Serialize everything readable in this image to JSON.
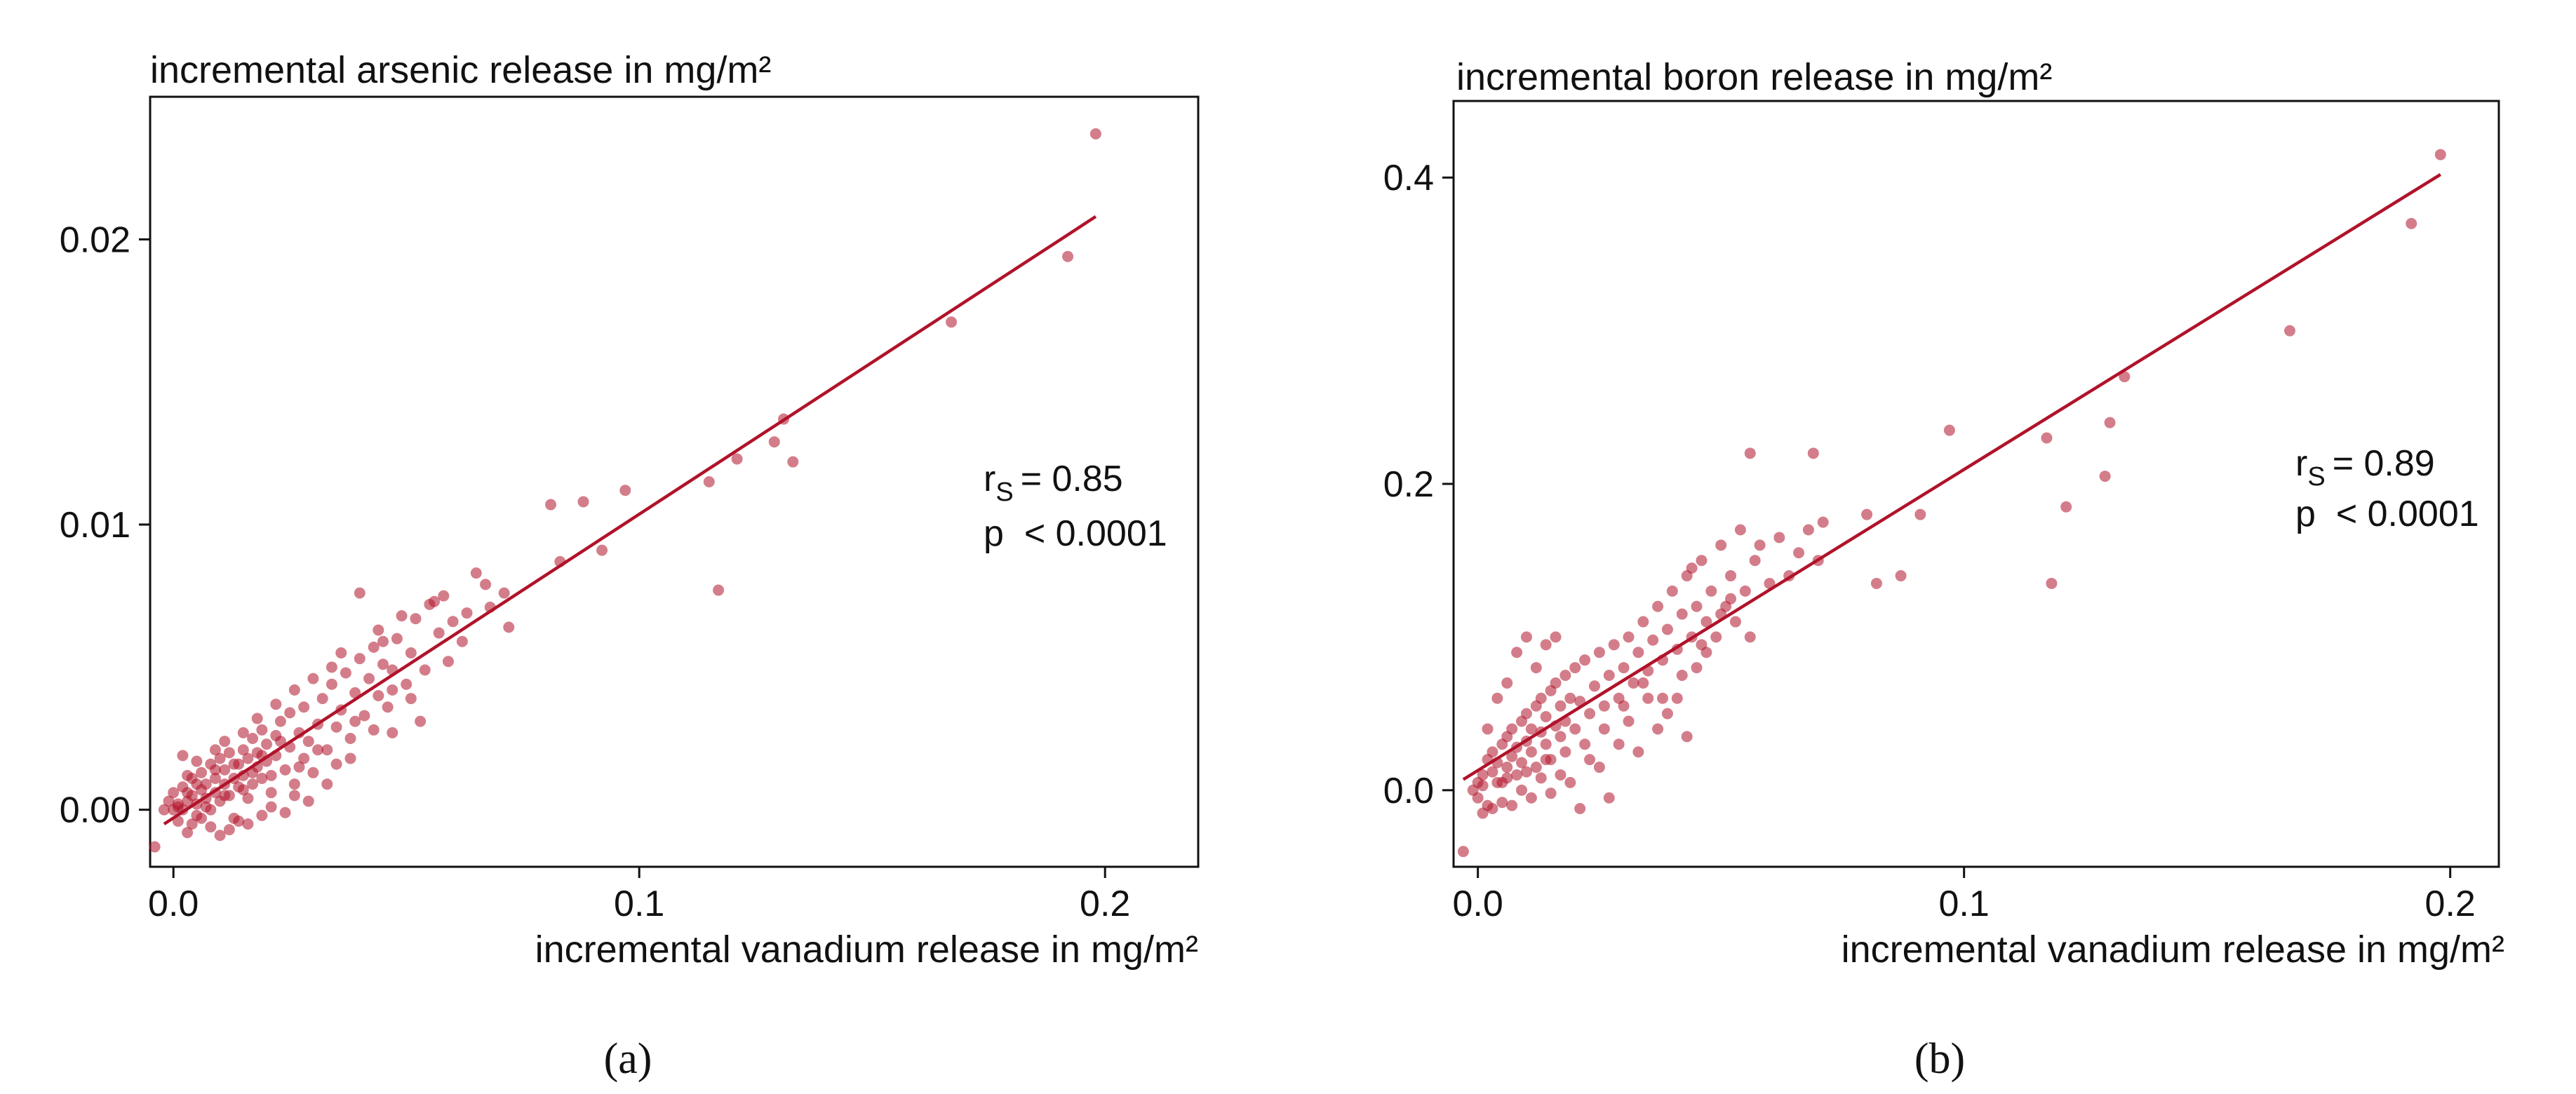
{
  "colors": {
    "accent": "#b0132a",
    "axis": "#111111",
    "background": "#ffffff"
  },
  "chart_data": [
    {
      "type": "scatter",
      "title": "incremental arsenic release in mg/m²",
      "xlabel": "incremental vanadium release in mg/m²",
      "ylabel": "",
      "xlim": [
        -0.005,
        0.22
      ],
      "ylim": [
        -0.002,
        0.025
      ],
      "xticks": [
        0.0,
        0.1,
        0.2
      ],
      "xtick_labels": [
        "0.0",
        "0.1",
        "0.2"
      ],
      "yticks": [
        0.0,
        0.01,
        0.02
      ],
      "ytick_labels": [
        "0.00",
        "0.01",
        "0.02"
      ],
      "grid": false,
      "annotation": {
        "r_prefix": "r",
        "r_sub": "S",
        "r_value": "= 0.85",
        "p_text": "p  < 0.0001"
      },
      "fit_line": {
        "x": [
          -0.002,
          0.198
        ],
        "y": [
          -0.0005,
          0.0208
        ]
      },
      "caption": "(a)",
      "points": [
        [
          -0.004,
          -0.0013
        ],
        [
          -0.002,
          0.0
        ],
        [
          -0.001,
          0.0003
        ],
        [
          0.0,
          0.0
        ],
        [
          0.0,
          0.0006
        ],
        [
          0.001,
          -0.0004
        ],
        [
          0.001,
          0.0002
        ],
        [
          0.002,
          0.0008
        ],
        [
          0.002,
          0.0
        ],
        [
          0.003,
          0.0003
        ],
        [
          0.003,
          -0.0008
        ],
        [
          0.004,
          0.0005
        ],
        [
          0.004,
          0.0011
        ],
        [
          0.005,
          0.0002
        ],
        [
          0.005,
          -0.0002
        ],
        [
          0.006,
          0.0007
        ],
        [
          0.006,
          0.0013
        ],
        [
          0.007,
          0.0004
        ],
        [
          0.007,
          0.0009
        ],
        [
          0.008,
          0.0
        ],
        [
          0.008,
          0.0016
        ],
        [
          0.009,
          0.0006
        ],
        [
          0.009,
          0.0011
        ],
        [
          0.01,
          0.0003
        ],
        [
          0.01,
          0.0018
        ],
        [
          0.011,
          0.0009
        ],
        [
          0.011,
          0.0014
        ],
        [
          0.012,
          0.0005
        ],
        [
          0.012,
          0.002
        ],
        [
          0.013,
          0.0011
        ],
        [
          0.013,
          -0.0003
        ],
        [
          0.014,
          0.0016
        ],
        [
          0.014,
          0.0008
        ],
        [
          0.015,
          0.0021
        ],
        [
          0.015,
          0.0012
        ],
        [
          0.016,
          0.0004
        ],
        [
          0.016,
          0.0018
        ],
        [
          0.017,
          0.0025
        ],
        [
          0.017,
          0.0009
        ],
        [
          0.018,
          0.0015
        ],
        [
          0.018,
          0.002
        ],
        [
          0.019,
          0.0028
        ],
        [
          0.019,
          0.0011
        ],
        [
          0.02,
          0.0017
        ],
        [
          0.02,
          0.0023
        ],
        [
          0.021,
          0.0006
        ],
        [
          0.022,
          0.0019
        ],
        [
          0.022,
          0.0026
        ],
        [
          0.023,
          0.0031
        ],
        [
          0.024,
          0.0014
        ],
        [
          0.025,
          0.0022
        ],
        [
          0.025,
          0.0034
        ],
        [
          0.026,
          0.0009
        ],
        [
          0.027,
          0.0027
        ],
        [
          0.028,
          0.0018
        ],
        [
          0.028,
          0.0036
        ],
        [
          0.029,
          0.0024
        ],
        [
          0.03,
          0.0013
        ],
        [
          0.031,
          0.003
        ],
        [
          0.032,
          0.0039
        ],
        [
          0.033,
          0.0021
        ],
        [
          0.034,
          0.0044
        ],
        [
          0.035,
          0.0029
        ],
        [
          0.036,
          0.0035
        ],
        [
          0.037,
          0.0048
        ],
        [
          0.038,
          0.0025
        ],
        [
          0.039,
          0.0041
        ],
        [
          0.04,
          0.0053
        ],
        [
          0.041,
          0.0033
        ],
        [
          0.042,
          0.0046
        ],
        [
          0.043,
          0.0057
        ],
        [
          0.044,
          0.004
        ],
        [
          0.045,
          0.0051
        ],
        [
          0.046,
          0.0036
        ],
        [
          0.047,
          0.0049
        ],
        [
          0.048,
          0.006
        ],
        [
          0.05,
          0.0044
        ],
        [
          0.051,
          0.0055
        ],
        [
          0.052,
          0.0067
        ],
        [
          0.054,
          0.0049
        ],
        [
          0.055,
          0.0072
        ],
        [
          0.057,
          0.0062
        ],
        [
          0.058,
          0.0075
        ],
        [
          0.06,
          0.0066
        ],
        [
          0.062,
          0.0059
        ],
        [
          0.065,
          0.0083
        ],
        [
          0.068,
          0.0071
        ],
        [
          0.071,
          0.0076
        ],
        [
          0.072,
          0.0064
        ],
        [
          0.04,
          0.0076
        ],
        [
          0.053,
          0.0031
        ],
        [
          0.047,
          0.0027
        ],
        [
          0.038,
          0.0018
        ],
        [
          0.033,
          0.0009
        ],
        [
          0.029,
          0.0003
        ],
        [
          0.026,
          0.0005
        ],
        [
          0.024,
          -0.0001
        ],
        [
          0.021,
          0.0001
        ],
        [
          0.019,
          -0.0002
        ],
        [
          0.016,
          -0.0005
        ],
        [
          0.014,
          -0.0004
        ],
        [
          0.012,
          -0.0007
        ],
        [
          0.01,
          -0.0009
        ],
        [
          0.008,
          -0.0006
        ],
        [
          0.006,
          -0.0003
        ],
        [
          0.004,
          -0.0005
        ],
        [
          0.003,
          0.0012
        ],
        [
          0.002,
          0.0019
        ],
        [
          0.005,
          0.0017
        ],
        [
          0.009,
          0.0021
        ],
        [
          0.011,
          0.0024
        ],
        [
          0.015,
          0.0027
        ],
        [
          0.018,
          0.0032
        ],
        [
          0.022,
          0.0037
        ],
        [
          0.026,
          0.0042
        ],
        [
          0.03,
          0.0046
        ],
        [
          0.034,
          0.005
        ],
        [
          0.036,
          0.0055
        ],
        [
          0.044,
          0.0063
        ],
        [
          0.049,
          0.0068
        ],
        [
          0.056,
          0.0073
        ],
        [
          0.063,
          0.0069
        ],
        [
          0.067,
          0.0079
        ],
        [
          0.081,
          0.0107
        ],
        [
          0.083,
          0.0087
        ],
        [
          0.088,
          0.0108
        ],
        [
          0.092,
          0.0091
        ],
        [
          0.097,
          0.0112
        ],
        [
          0.115,
          0.0115
        ],
        [
          0.117,
          0.0077
        ],
        [
          0.121,
          0.0123
        ],
        [
          0.129,
          0.0129
        ],
        [
          0.131,
          0.0137
        ],
        [
          0.133,
          0.0122
        ],
        [
          0.167,
          0.0171
        ],
        [
          0.192,
          0.0194
        ],
        [
          0.198,
          0.0237
        ],
        [
          0.001,
          0.0001
        ],
        [
          0.003,
          0.0006
        ],
        [
          0.005,
          0.0009
        ],
        [
          0.007,
          0.0001
        ],
        [
          0.009,
          0.0014
        ],
        [
          0.011,
          0.0005
        ],
        [
          0.013,
          0.0016
        ],
        [
          0.015,
          0.0007
        ],
        [
          0.017,
          0.0013
        ],
        [
          0.019,
          0.0019
        ],
        [
          0.021,
          0.0012
        ],
        [
          0.023,
          0.0024
        ],
        [
          0.027,
          0.0015
        ],
        [
          0.031,
          0.0021
        ],
        [
          0.035,
          0.0016
        ],
        [
          0.039,
          0.0031
        ],
        [
          0.043,
          0.0028
        ],
        [
          0.047,
          0.0042
        ],
        [
          0.051,
          0.0039
        ],
        [
          0.059,
          0.0052
        ],
        [
          0.045,
          0.0059
        ]
      ]
    },
    {
      "type": "scatter",
      "title": "incremental boron release in mg/m²",
      "xlabel": "incremental vanadium release in mg/m²",
      "ylabel": "",
      "xlim": [
        -0.005,
        0.21
      ],
      "ylim": [
        -0.05,
        0.45
      ],
      "xticks": [
        0.0,
        0.1,
        0.2
      ],
      "xtick_labels": [
        "0.0",
        "0.1",
        "0.2"
      ],
      "yticks": [
        0.0,
        0.2,
        0.4
      ],
      "ytick_labels": [
        "0.0",
        "0.2",
        "0.4"
      ],
      "grid": false,
      "annotation": {
        "r_prefix": "r",
        "r_sub": "S",
        "r_value": "= 0.89",
        "p_text": "p  < 0.0001"
      },
      "fit_line": {
        "x": [
          -0.003,
          0.198
        ],
        "y": [
          0.007,
          0.402
        ]
      },
      "caption": "(b)",
      "points": [
        [
          -0.003,
          -0.04
        ],
        [
          -0.001,
          0.0
        ],
        [
          0.0,
          0.005
        ],
        [
          0.0,
          -0.005
        ],
        [
          0.001,
          0.01
        ],
        [
          0.001,
          0.003
        ],
        [
          0.002,
          0.02
        ],
        [
          0.002,
          -0.01
        ],
        [
          0.003,
          0.012
        ],
        [
          0.003,
          0.025
        ],
        [
          0.004,
          0.005
        ],
        [
          0.004,
          0.018
        ],
        [
          0.005,
          0.03
        ],
        [
          0.005,
          -0.008
        ],
        [
          0.006,
          0.015
        ],
        [
          0.006,
          0.035
        ],
        [
          0.007,
          0.022
        ],
        [
          0.007,
          0.04
        ],
        [
          0.008,
          0.01
        ],
        [
          0.008,
          0.028
        ],
        [
          0.009,
          0.045
        ],
        [
          0.009,
          0.018
        ],
        [
          0.01,
          0.032
        ],
        [
          0.01,
          0.05
        ],
        [
          0.011,
          0.025
        ],
        [
          0.011,
          0.04
        ],
        [
          0.012,
          0.055
        ],
        [
          0.012,
          0.015
        ],
        [
          0.013,
          0.038
        ],
        [
          0.013,
          0.06
        ],
        [
          0.014,
          0.03
        ],
        [
          0.014,
          0.048
        ],
        [
          0.015,
          0.065
        ],
        [
          0.015,
          0.02
        ],
        [
          0.016,
          0.042
        ],
        [
          0.016,
          0.07
        ],
        [
          0.017,
          0.035
        ],
        [
          0.017,
          0.055
        ],
        [
          0.018,
          0.075
        ],
        [
          0.018,
          0.045
        ],
        [
          0.019,
          0.06
        ],
        [
          0.02,
          0.08
        ],
        [
          0.02,
          0.04
        ],
        [
          0.021,
          0.058
        ],
        [
          0.022,
          0.085
        ],
        [
          0.023,
          0.05
        ],
        [
          0.024,
          0.068
        ],
        [
          0.025,
          0.09
        ],
        [
          0.026,
          0.055
        ],
        [
          0.027,
          0.075
        ],
        [
          0.028,
          0.095
        ],
        [
          0.029,
          0.06
        ],
        [
          0.03,
          0.08
        ],
        [
          0.031,
          0.1
        ],
        [
          0.032,
          0.07
        ],
        [
          0.033,
          0.09
        ],
        [
          0.034,
          0.11
        ],
        [
          0.035,
          0.078
        ],
        [
          0.036,
          0.098
        ],
        [
          0.037,
          0.12
        ],
        [
          0.038,
          0.085
        ],
        [
          0.039,
          0.105
        ],
        [
          0.04,
          0.13
        ],
        [
          0.041,
          0.092
        ],
        [
          0.042,
          0.115
        ],
        [
          0.043,
          0.14
        ],
        [
          0.044,
          0.1
        ],
        [
          0.045,
          0.12
        ],
        [
          0.046,
          0.15
        ],
        [
          0.047,
          0.11
        ],
        [
          0.048,
          0.13
        ],
        [
          0.05,
          0.16
        ],
        [
          0.051,
          0.12
        ],
        [
          0.052,
          0.14
        ],
        [
          0.054,
          0.17
        ],
        [
          0.055,
          0.13
        ],
        [
          0.057,
          0.15
        ],
        [
          0.058,
          0.16
        ],
        [
          0.06,
          0.135
        ],
        [
          0.062,
          0.165
        ],
        [
          0.064,
          0.14
        ],
        [
          0.066,
          0.155
        ],
        [
          0.068,
          0.17
        ],
        [
          0.07,
          0.15
        ],
        [
          0.056,
          0.22
        ],
        [
          0.069,
          0.22
        ],
        [
          0.071,
          0.175
        ],
        [
          0.08,
          0.18
        ],
        [
          0.082,
          0.135
        ],
        [
          0.087,
          0.14
        ],
        [
          0.091,
          0.18
        ],
        [
          0.097,
          0.235
        ],
        [
          0.117,
          0.23
        ],
        [
          0.118,
          0.135
        ],
        [
          0.121,
          0.185
        ],
        [
          0.129,
          0.205
        ],
        [
          0.13,
          0.24
        ],
        [
          0.133,
          0.27
        ],
        [
          0.167,
          0.3
        ],
        [
          0.192,
          0.37
        ],
        [
          0.198,
          0.415
        ],
        [
          0.001,
          -0.015
        ],
        [
          0.003,
          -0.012
        ],
        [
          0.005,
          0.005
        ],
        [
          0.007,
          -0.01
        ],
        [
          0.009,
          0.0
        ],
        [
          0.011,
          -0.005
        ],
        [
          0.013,
          0.008
        ],
        [
          0.015,
          -0.002
        ],
        [
          0.017,
          0.01
        ],
        [
          0.019,
          0.005
        ],
        [
          0.021,
          -0.012
        ],
        [
          0.023,
          0.02
        ],
        [
          0.025,
          0.015
        ],
        [
          0.027,
          -0.005
        ],
        [
          0.029,
          0.03
        ],
        [
          0.031,
          0.045
        ],
        [
          0.033,
          0.025
        ],
        [
          0.035,
          0.06
        ],
        [
          0.037,
          0.04
        ],
        [
          0.039,
          0.05
        ],
        [
          0.041,
          0.06
        ],
        [
          0.043,
          0.035
        ],
        [
          0.045,
          0.08
        ],
        [
          0.047,
          0.09
        ],
        [
          0.049,
          0.1
        ],
        [
          0.053,
          0.11
        ],
        [
          0.056,
          0.1
        ],
        [
          0.002,
          0.04
        ],
        [
          0.004,
          0.06
        ],
        [
          0.006,
          0.07
        ],
        [
          0.008,
          0.09
        ],
        [
          0.01,
          0.1
        ],
        [
          0.012,
          0.08
        ],
        [
          0.014,
          0.095
        ],
        [
          0.016,
          0.1
        ],
        [
          0.006,
          0.008
        ],
        [
          0.01,
          0.012
        ],
        [
          0.014,
          0.02
        ],
        [
          0.018,
          0.025
        ],
        [
          0.022,
          0.03
        ],
        [
          0.026,
          0.04
        ],
        [
          0.03,
          0.055
        ],
        [
          0.034,
          0.07
        ],
        [
          0.038,
          0.06
        ],
        [
          0.042,
          0.075
        ],
        [
          0.046,
          0.095
        ],
        [
          0.05,
          0.115
        ],
        [
          0.052,
          0.125
        ],
        [
          0.044,
          0.145
        ]
      ]
    }
  ]
}
